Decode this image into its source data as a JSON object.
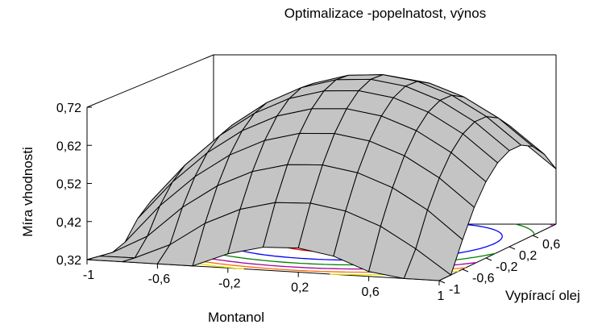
{
  "chart_data": {
    "type": "surface3d",
    "title": "Optimalizace -popelnatost, výnos",
    "xlabel": "Montanol",
    "ylabel": "Vypírací olej",
    "zlabel": "Míra vhodnosti",
    "x_ticks": [
      "-1",
      "-0,6",
      "-0,2",
      "0,2",
      "0,6",
      "1"
    ],
    "y_ticks": [
      "-1",
      "-0,6",
      "-0,2",
      "0,2",
      "0,6"
    ],
    "z_ticks": [
      "0,32",
      "0,42",
      "0,52",
      "0,62",
      "0,72"
    ],
    "xlim": [
      -1,
      1
    ],
    "ylim": [
      -1,
      1
    ],
    "zlim": [
      0.32,
      0.72
    ],
    "surface_model": {
      "a": 0.73,
      "b_x": 0.065,
      "c_y": 0.13,
      "d_x2": -0.24,
      "e_y2": -0.22
    },
    "grid_divisions": 10,
    "contour_colors": [
      "#ff0000",
      "#0000ff",
      "#008000",
      "#a000a0",
      "#ff6a00",
      "#e8e800"
    ],
    "surface_color": "#c4c4c4"
  }
}
